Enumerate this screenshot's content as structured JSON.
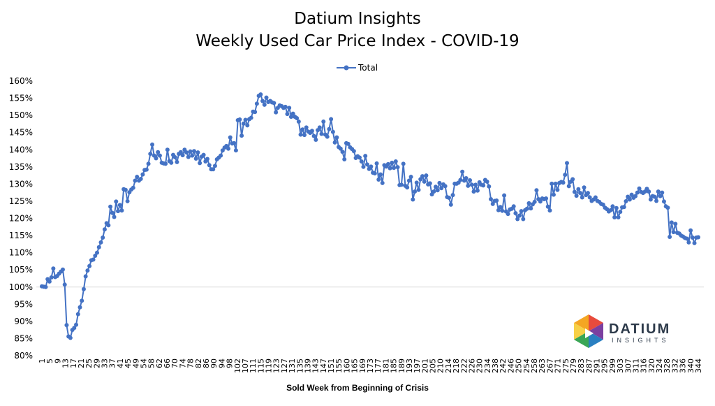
{
  "chart_data": {
    "type": "line",
    "title": "Datium Insights",
    "subtitle": "Weekly Used Car Price Index - COVID-19",
    "xlabel": "Sold Week from Beginning of Crisis",
    "ylabel": "",
    "legend": {
      "position": "top-center",
      "entries": [
        "Total"
      ]
    },
    "ylim": [
      80,
      160
    ],
    "y_unit": "%",
    "y_ticks": [
      80,
      85,
      90,
      95,
      100,
      105,
      110,
      115,
      120,
      125,
      130,
      135,
      140,
      145,
      150,
      155,
      160
    ],
    "x_tick_labels": [
      1,
      5,
      9,
      13,
      17,
      21,
      25,
      29,
      33,
      37,
      41,
      45,
      49,
      54,
      58,
      62,
      66,
      70,
      74,
      78,
      82,
      86,
      90,
      94,
      98,
      102,
      107,
      111,
      115,
      119,
      123,
      127,
      131,
      135,
      139,
      143,
      147,
      151,
      155,
      160,
      165,
      169,
      173,
      177,
      181,
      185,
      189,
      193,
      197,
      201,
      205,
      210,
      214,
      218,
      222,
      226,
      230,
      234,
      238,
      242,
      246,
      250,
      254,
      258,
      263,
      267,
      271,
      275,
      279,
      283,
      287,
      291,
      295,
      299,
      303,
      307,
      311,
      316,
      320,
      324,
      328,
      332,
      336,
      340,
      344
    ],
    "reference_line": 100,
    "grid": false,
    "series": [
      {
        "name": "Total",
        "color": "#4472C4",
        "values": [
          100.2,
          100.1,
          100,
          102.3,
          101.6,
          102.8,
          105.4,
          102.9,
          103.2,
          103.9,
          104.5,
          105.1,
          100.7,
          88.9,
          85.6,
          85.2,
          87.5,
          88.1,
          89,
          92.1,
          94.1,
          96,
          99.4,
          103.1,
          104.8,
          106.1,
          107.8,
          108,
          109.1,
          110,
          111.6,
          113,
          114.4,
          116.8,
          118.6,
          118,
          123.4,
          121.6,
          120.4,
          124.9,
          122.1,
          123.9,
          122.3,
          128.5,
          128.3,
          125,
          127.6,
          128.4,
          128.9,
          131,
          132.1,
          131,
          131.5,
          132.8,
          134.1,
          134.2,
          135.9,
          138.8,
          141.5,
          138.3,
          137.5,
          139.3,
          138.3,
          136.2,
          136,
          135.9,
          140,
          136.7,
          136.2,
          138.5,
          137.8,
          136.4,
          138.8,
          139.3,
          138.4,
          140,
          139.2,
          137.9,
          139.5,
          138.3,
          139.6,
          137.4,
          139.2,
          136.1,
          138,
          138.5,
          136.6,
          137.3,
          135.5,
          134.3,
          134.3,
          135.3,
          137.2,
          137.7,
          138.3,
          139.8,
          140.6,
          141.1,
          140.3,
          143.6,
          141.8,
          141.9,
          139.8,
          148.6,
          148.8,
          144.1,
          147.6,
          148.7,
          147.1,
          148.9,
          149.3,
          151.1,
          151,
          153.4,
          155.7,
          156.1,
          154.2,
          153.1,
          155.2,
          153.9,
          154.2,
          153.8,
          153.6,
          150.9,
          152.2,
          152.9,
          152.7,
          152.2,
          152.5,
          150.4,
          152.2,
          149.6,
          150.5,
          149.6,
          149.2,
          148.2,
          144.4,
          145.9,
          144.3,
          146.5,
          145.3,
          144.9,
          145.5,
          144,
          142.9,
          145.7,
          146.5,
          144.6,
          148.2,
          144.4,
          143.8,
          146,
          148.9,
          145.2,
          142.1,
          143.6,
          140.8,
          140.3,
          139.4,
          137.2,
          141.9,
          141.7,
          140.7,
          140.2,
          139.6,
          137.6,
          138.1,
          137.7,
          136.6,
          135,
          138.2,
          135.7,
          134.4,
          135.1,
          133.3,
          133.1,
          136,
          131.3,
          132.8,
          130.3,
          135.5,
          135.1,
          135.8,
          134.6,
          136.2,
          134.7,
          136.6,
          134.9,
          129.7,
          129.8,
          135.9,
          129.5,
          129,
          131,
          132.1,
          125.5,
          127.8,
          130.4,
          128.3,
          131.4,
          132.3,
          130.7,
          132.5,
          129.9,
          130.2,
          127,
          127.8,
          129.2,
          128.2,
          130.3,
          128.8,
          129.9,
          129.4,
          126.2,
          126,
          124,
          126.8,
          130.1,
          130.1,
          130.4,
          131.2,
          133.6,
          131,
          131.7,
          129.5,
          131.1,
          129.8,
          127.8,
          129.8,
          128.1,
          130.5,
          129.8,
          129.6,
          131.2,
          130.7,
          129.3,
          125.6,
          124.2,
          125.1,
          125.2,
          122.4,
          123.3,
          122.2,
          126.7,
          122,
          121.3,
          122.6,
          122.8,
          123.5,
          121.5,
          119.8,
          120.8,
          122.1,
          119.8,
          122.4,
          122.8,
          124.4,
          122.9,
          124.1,
          124.8,
          128.2,
          125.6,
          124.9,
          125.8,
          125.6,
          125.8,
          123.4,
          122.3,
          130.1,
          126.9,
          130.1,
          128.3,
          130.3,
          130.6,
          130.4,
          132.7,
          136.1,
          129.4,
          130.7,
          131.4,
          127.7,
          126.6,
          128.5,
          127.4,
          126.1,
          129,
          126.8,
          127.4,
          126.1,
          125.1,
          125.5,
          126.1,
          125.1,
          124.8,
          124.2,
          124,
          123.1,
          122.7,
          122,
          122.4,
          123.5,
          120.3,
          123,
          120.3,
          121.9,
          123.2,
          123.3,
          125,
          126.3,
          125.5,
          126.9,
          126,
          126.5,
          127.5,
          128.7,
          127.7,
          127.4,
          127.8,
          128.6,
          127.8,
          125.5,
          126.5,
          126.3,
          125.1,
          127.8,
          126.5,
          127.5,
          124.9,
          123.5,
          123.1,
          114.6,
          118.8,
          116,
          118.4,
          115.8,
          115.6,
          115,
          114.7,
          114.3,
          114.1,
          113,
          116.5,
          114.4,
          112.8,
          114.4,
          114.5
        ]
      }
    ]
  },
  "logo": {
    "name": "DATIUM",
    "tagline": "INSIGHTS"
  }
}
